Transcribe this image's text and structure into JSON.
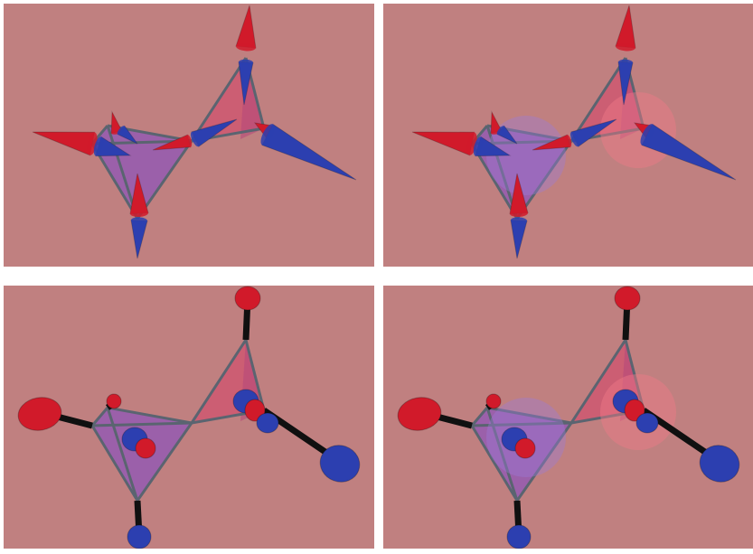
{
  "figure": {
    "panels": [
      {
        "id": "p1",
        "style": "arrows",
        "overlay_spheres": false
      },
      {
        "id": "p2",
        "style": "arrows",
        "overlay_spheres": true
      },
      {
        "id": "p3",
        "style": "ellipsoids",
        "overlay_spheres": false
      },
      {
        "id": "p4",
        "style": "ellipsoids",
        "overlay_spheres": true
      }
    ],
    "colors": {
      "background": "#c08080",
      "red": "#d11a2a",
      "blue": "#2c3fb0",
      "purple_face": "#8f55b8",
      "pink_face": "#d2506e",
      "edge": "#5a6470",
      "bond": "#101010"
    },
    "icons": [
      "arrow-vector-icon",
      "ellipsoid-icon",
      "tetrahedron-icon"
    ]
  }
}
